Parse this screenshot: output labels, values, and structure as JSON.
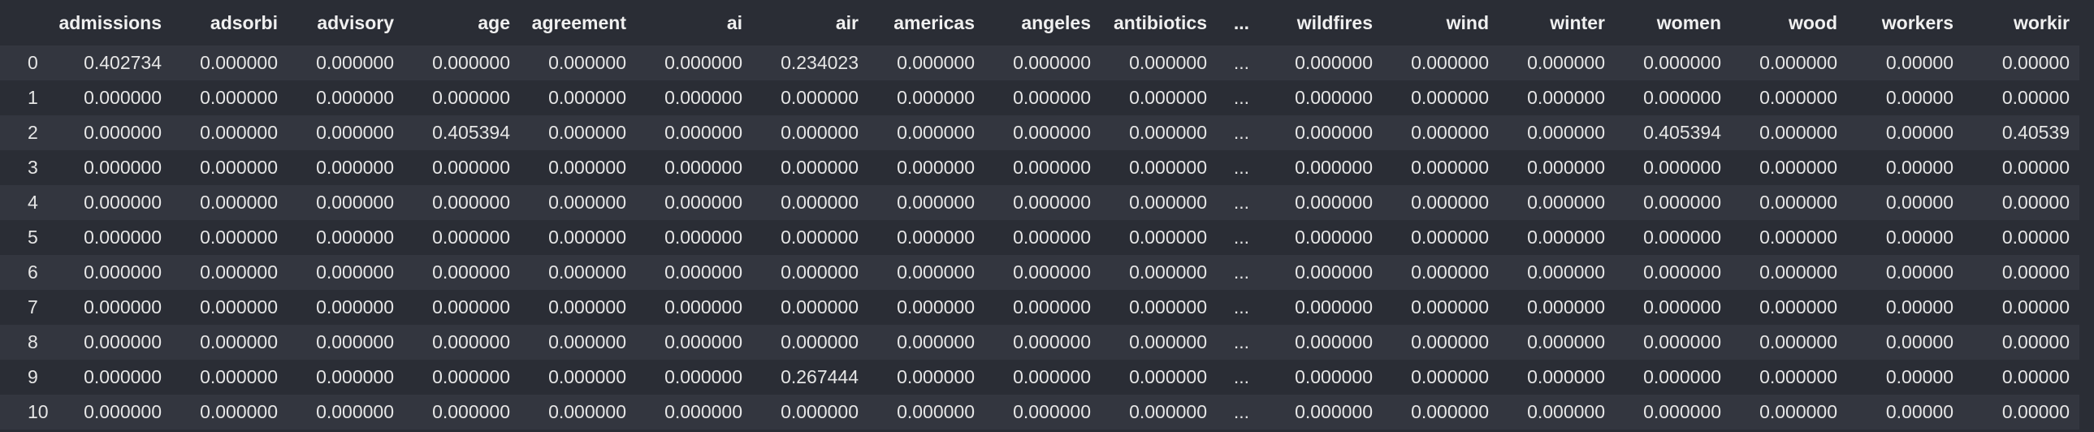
{
  "table": {
    "columns": [
      "",
      "admissions",
      "adsorbi",
      "advisory",
      "age",
      "agreement",
      "ai",
      "air",
      "americas",
      "angeles",
      "antibiotics",
      "...",
      "wildfires",
      "wind",
      "winter",
      "women",
      "wood",
      "workers",
      "workir"
    ],
    "rows": [
      [
        "0",
        "0.402734",
        "0.000000",
        "0.000000",
        "0.000000",
        "0.000000",
        "0.000000",
        "0.234023",
        "0.000000",
        "0.000000",
        "0.000000",
        "...",
        "0.000000",
        "0.000000",
        "0.000000",
        "0.000000",
        "0.000000",
        "0.00000",
        "0.00000"
      ],
      [
        "1",
        "0.000000",
        "0.000000",
        "0.000000",
        "0.000000",
        "0.000000",
        "0.000000",
        "0.000000",
        "0.000000",
        "0.000000",
        "0.000000",
        "...",
        "0.000000",
        "0.000000",
        "0.000000",
        "0.000000",
        "0.000000",
        "0.00000",
        "0.00000"
      ],
      [
        "2",
        "0.000000",
        "0.000000",
        "0.000000",
        "0.405394",
        "0.000000",
        "0.000000",
        "0.000000",
        "0.000000",
        "0.000000",
        "0.000000",
        "...",
        "0.000000",
        "0.000000",
        "0.000000",
        "0.405394",
        "0.000000",
        "0.00000",
        "0.40539"
      ],
      [
        "3",
        "0.000000",
        "0.000000",
        "0.000000",
        "0.000000",
        "0.000000",
        "0.000000",
        "0.000000",
        "0.000000",
        "0.000000",
        "0.000000",
        "...",
        "0.000000",
        "0.000000",
        "0.000000",
        "0.000000",
        "0.000000",
        "0.00000",
        "0.00000"
      ],
      [
        "4",
        "0.000000",
        "0.000000",
        "0.000000",
        "0.000000",
        "0.000000",
        "0.000000",
        "0.000000",
        "0.000000",
        "0.000000",
        "0.000000",
        "...",
        "0.000000",
        "0.000000",
        "0.000000",
        "0.000000",
        "0.000000",
        "0.00000",
        "0.00000"
      ],
      [
        "5",
        "0.000000",
        "0.000000",
        "0.000000",
        "0.000000",
        "0.000000",
        "0.000000",
        "0.000000",
        "0.000000",
        "0.000000",
        "0.000000",
        "...",
        "0.000000",
        "0.000000",
        "0.000000",
        "0.000000",
        "0.000000",
        "0.00000",
        "0.00000"
      ],
      [
        "6",
        "0.000000",
        "0.000000",
        "0.000000",
        "0.000000",
        "0.000000",
        "0.000000",
        "0.000000",
        "0.000000",
        "0.000000",
        "0.000000",
        "...",
        "0.000000",
        "0.000000",
        "0.000000",
        "0.000000",
        "0.000000",
        "0.00000",
        "0.00000"
      ],
      [
        "7",
        "0.000000",
        "0.000000",
        "0.000000",
        "0.000000",
        "0.000000",
        "0.000000",
        "0.000000",
        "0.000000",
        "0.000000",
        "0.000000",
        "...",
        "0.000000",
        "0.000000",
        "0.000000",
        "0.000000",
        "0.000000",
        "0.00000",
        "0.00000"
      ],
      [
        "8",
        "0.000000",
        "0.000000",
        "0.000000",
        "0.000000",
        "0.000000",
        "0.000000",
        "0.000000",
        "0.000000",
        "0.000000",
        "0.000000",
        "...",
        "0.000000",
        "0.000000",
        "0.000000",
        "0.000000",
        "0.000000",
        "0.00000",
        "0.00000"
      ],
      [
        "9",
        "0.000000",
        "0.000000",
        "0.000000",
        "0.000000",
        "0.000000",
        "0.000000",
        "0.267444",
        "0.000000",
        "0.000000",
        "0.000000",
        "...",
        "0.000000",
        "0.000000",
        "0.000000",
        "0.000000",
        "0.000000",
        "0.00000",
        "0.00000"
      ],
      [
        "10",
        "0.000000",
        "0.000000",
        "0.000000",
        "0.000000",
        "0.000000",
        "0.000000",
        "0.000000",
        "0.000000",
        "0.000000",
        "0.000000",
        "...",
        "0.000000",
        "0.000000",
        "0.000000",
        "0.000000",
        "0.000000",
        "0.00000",
        "0.00000"
      ]
    ]
  },
  "colors": {
    "background": "#2a2d35",
    "row_stripe": "#33363f",
    "text": "#e6e6e6"
  }
}
